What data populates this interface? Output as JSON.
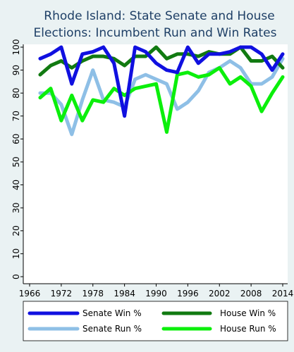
{
  "chart_data": {
    "type": "line",
    "title": "Rhode Island: State Senate and House",
    "subtitle": "Elections: Incumbent Run and Win Rates",
    "xlabel": "",
    "ylabel": "",
    "xlim": [
      1966,
      2014
    ],
    "ylim": [
      0,
      100
    ],
    "x_ticks": [
      1966,
      1972,
      1978,
      1984,
      1990,
      1996,
      2002,
      2008,
      2014
    ],
    "y_ticks": [
      0,
      10,
      20,
      30,
      40,
      50,
      60,
      70,
      80,
      90,
      100
    ],
    "grid": false,
    "legend_position": "bottom",
    "x": [
      1968,
      1970,
      1972,
      1974,
      1976,
      1978,
      1980,
      1982,
      1984,
      1986,
      1988,
      1990,
      1992,
      1994,
      1996,
      1998,
      2000,
      2002,
      2004,
      2006,
      2008,
      2010,
      2012,
      2014
    ],
    "series": [
      {
        "name": "Senate Win %",
        "color": "#1010e0",
        "values": [
          95,
          97,
          100,
          84,
          97,
          98,
          100,
          93,
          70,
          100,
          98,
          93,
          90,
          89,
          100,
          93,
          97,
          97,
          98,
          100,
          100,
          97,
          90,
          97
        ]
      },
      {
        "name": "House Win %",
        "color": "#117a11",
        "values": [
          88,
          92,
          94,
          91,
          94,
          96,
          96,
          95,
          92,
          96,
          96,
          100,
          95,
          97,
          97,
          96,
          98,
          97,
          97,
          100,
          94,
          94,
          96,
          91
        ]
      },
      {
        "name": "Senate Run %",
        "color": "#8ebfe6",
        "values": [
          80,
          80,
          75,
          62,
          77,
          90,
          77,
          76,
          74,
          86,
          88,
          86,
          84,
          73,
          76,
          81,
          89,
          91,
          94,
          91,
          84,
          84,
          87,
          95
        ]
      },
      {
        "name": "House Run %",
        "color": "#0bef0b",
        "values": [
          78,
          82,
          68,
          79,
          68,
          77,
          76,
          82,
          79,
          82,
          83,
          84,
          63,
          88,
          89,
          87,
          88,
          91,
          84,
          87,
          83,
          72,
          80,
          87
        ]
      }
    ]
  }
}
